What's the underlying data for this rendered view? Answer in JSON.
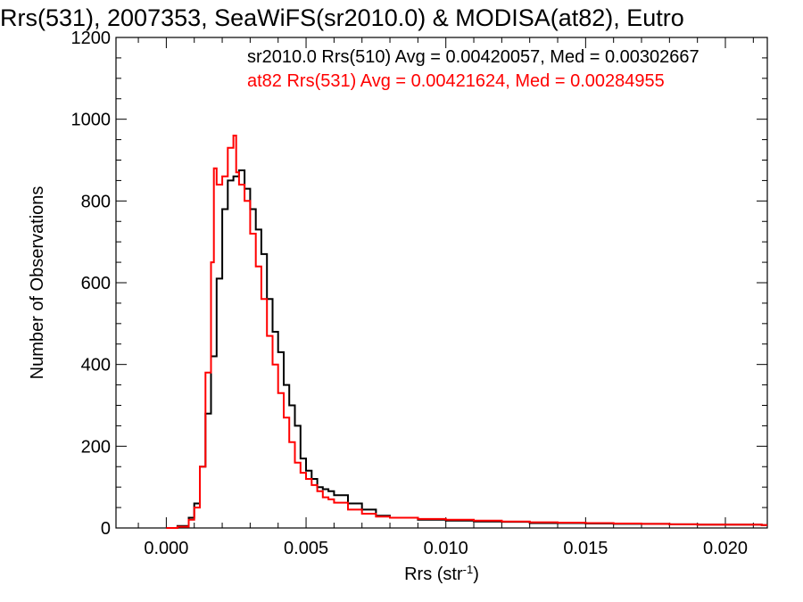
{
  "chart_data": {
    "type": "line",
    "title": "Rrs(531), 2007353, SeaWiFS(sr2010.0) & MODISA(at82), Eutro",
    "xlabel": "Rrs (str",
    "xlabel_sup": "-1",
    "xlabel_close": ")",
    "ylabel": "Number of Observations",
    "xlim": [
      -0.0018,
      0.0215
    ],
    "ylim": [
      0,
      1200
    ],
    "xticks": [
      0.0,
      0.005,
      0.01,
      0.015,
      0.02
    ],
    "xtick_labels": [
      "0.000",
      "0.005",
      "0.010",
      "0.015",
      "0.020"
    ],
    "yticks": [
      0,
      200,
      400,
      600,
      800,
      1000,
      1200
    ],
    "ytick_labels": [
      "0",
      "200",
      "400",
      "600",
      "800",
      "1000",
      "1200"
    ],
    "grid": false,
    "legend_placement": "top-right",
    "annotations": [
      {
        "text": "sr2010.0 Rrs(510) Avg = 0.00420057, Med = 0.00302667",
        "color": "#000000"
      },
      {
        "text": "at82 Rrs(531) Avg = 0.00421624, Med = 0.00284955",
        "color": "#ff0000"
      }
    ],
    "series": [
      {
        "color": "#000000",
        "x": [
          0.0,
          0.0004,
          0.0008,
          0.001,
          0.0012,
          0.0014,
          0.0016,
          0.0018,
          0.002,
          0.0022,
          0.0024,
          0.0026,
          0.0028,
          0.003,
          0.0032,
          0.0034,
          0.0036,
          0.0038,
          0.004,
          0.0042,
          0.0044,
          0.0046,
          0.0048,
          0.005,
          0.0052,
          0.0054,
          0.0056,
          0.0058,
          0.006,
          0.0065,
          0.007,
          0.0075,
          0.008,
          0.009,
          0.01,
          0.011,
          0.012,
          0.013,
          0.014,
          0.015,
          0.016,
          0.017,
          0.018,
          0.019,
          0.02,
          0.0213
        ],
        "y": [
          0,
          5,
          25,
          60,
          150,
          280,
          420,
          610,
          780,
          850,
          860,
          875,
          830,
          780,
          730,
          670,
          560,
          480,
          430,
          350,
          300,
          250,
          170,
          140,
          120,
          100,
          95,
          90,
          80,
          60,
          45,
          30,
          25,
          20,
          18,
          16,
          15,
          12,
          12,
          11,
          10,
          10,
          9,
          8,
          8,
          7
        ]
      },
      {
        "color": "#ff0000",
        "x": [
          0.0,
          0.0004,
          0.0008,
          0.001,
          0.0012,
          0.0014,
          0.0016,
          0.0017,
          0.0018,
          0.002,
          0.0022,
          0.0024,
          0.0025,
          0.0026,
          0.0028,
          0.003,
          0.0032,
          0.0034,
          0.0036,
          0.0038,
          0.004,
          0.0042,
          0.0044,
          0.0046,
          0.0048,
          0.005,
          0.0052,
          0.0054,
          0.0056,
          0.0058,
          0.006,
          0.0065,
          0.007,
          0.0075,
          0.008,
          0.009,
          0.01,
          0.011,
          0.012,
          0.013,
          0.014,
          0.015,
          0.016,
          0.017,
          0.018,
          0.019,
          0.02,
          0.0213
        ],
        "y": [
          0,
          3,
          20,
          50,
          150,
          380,
          650,
          880,
          840,
          860,
          930,
          960,
          870,
          840,
          800,
          720,
          640,
          560,
          470,
          400,
          330,
          270,
          210,
          160,
          135,
          120,
          105,
          90,
          75,
          70,
          62,
          45,
          35,
          28,
          25,
          22,
          20,
          18,
          16,
          14,
          13,
          12,
          11,
          10,
          9,
          8,
          8,
          7
        ]
      }
    ]
  }
}
